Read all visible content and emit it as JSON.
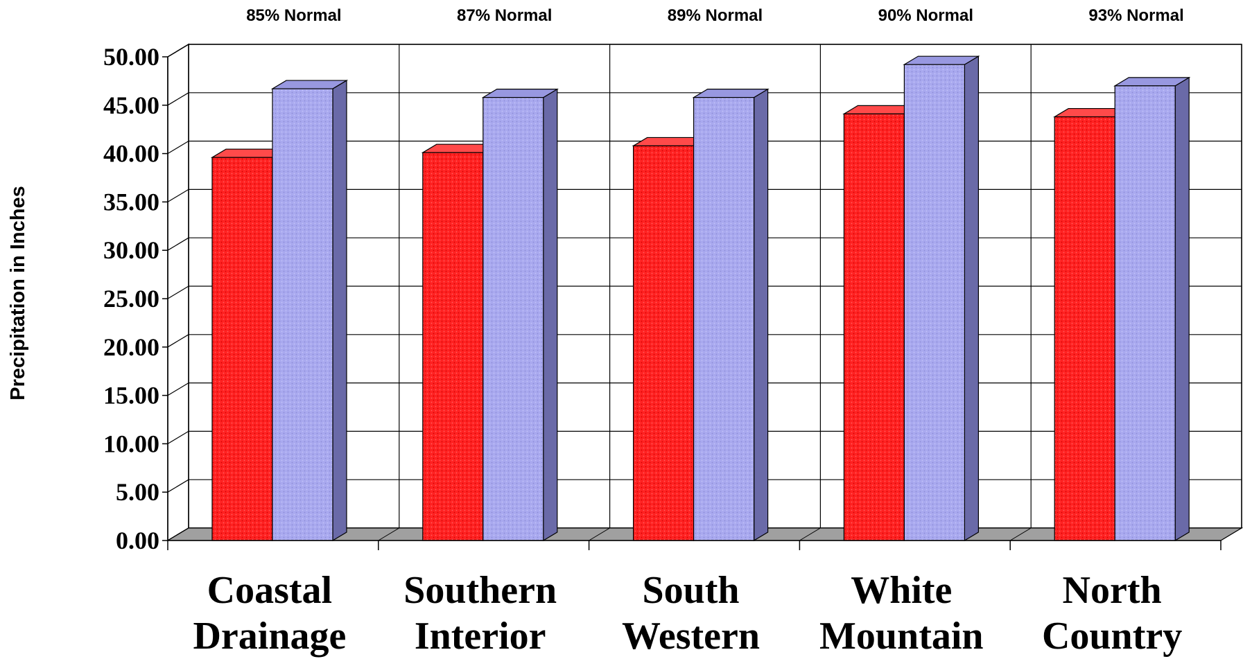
{
  "chart_data": {
    "type": "bar",
    "title": "",
    "xlabel": "",
    "ylabel": "Precipitation in Inches",
    "ylim": [
      0,
      50
    ],
    "yticks": [
      "0.00",
      "5.00",
      "10.00",
      "15.00",
      "20.00",
      "25.00",
      "30.00",
      "35.00",
      "40.00",
      "45.00",
      "50.00"
    ],
    "categories": [
      [
        "Coastal",
        "Drainage"
      ],
      [
        "Southern",
        "Interior"
      ],
      [
        "South",
        "Western"
      ],
      [
        "White",
        "Mountain"
      ],
      [
        "North",
        "Country"
      ]
    ],
    "annotations": [
      "85% Normal",
      "87% Normal",
      "89% Normal",
      "90% Normal",
      "93% Normal"
    ],
    "series": [
      {
        "color": "#ff2020",
        "values": [
          39.6,
          40.1,
          40.8,
          44.1,
          43.8
        ]
      },
      {
        "color": "#a7a7ee",
        "values": [
          46.7,
          45.8,
          45.8,
          49.2,
          47.0
        ]
      }
    ],
    "grid": true,
    "legend": "none",
    "colors": {
      "floor": "#a0a0a0",
      "series1_side": "#a01010",
      "series2_side": "#6a6aa8"
    }
  }
}
